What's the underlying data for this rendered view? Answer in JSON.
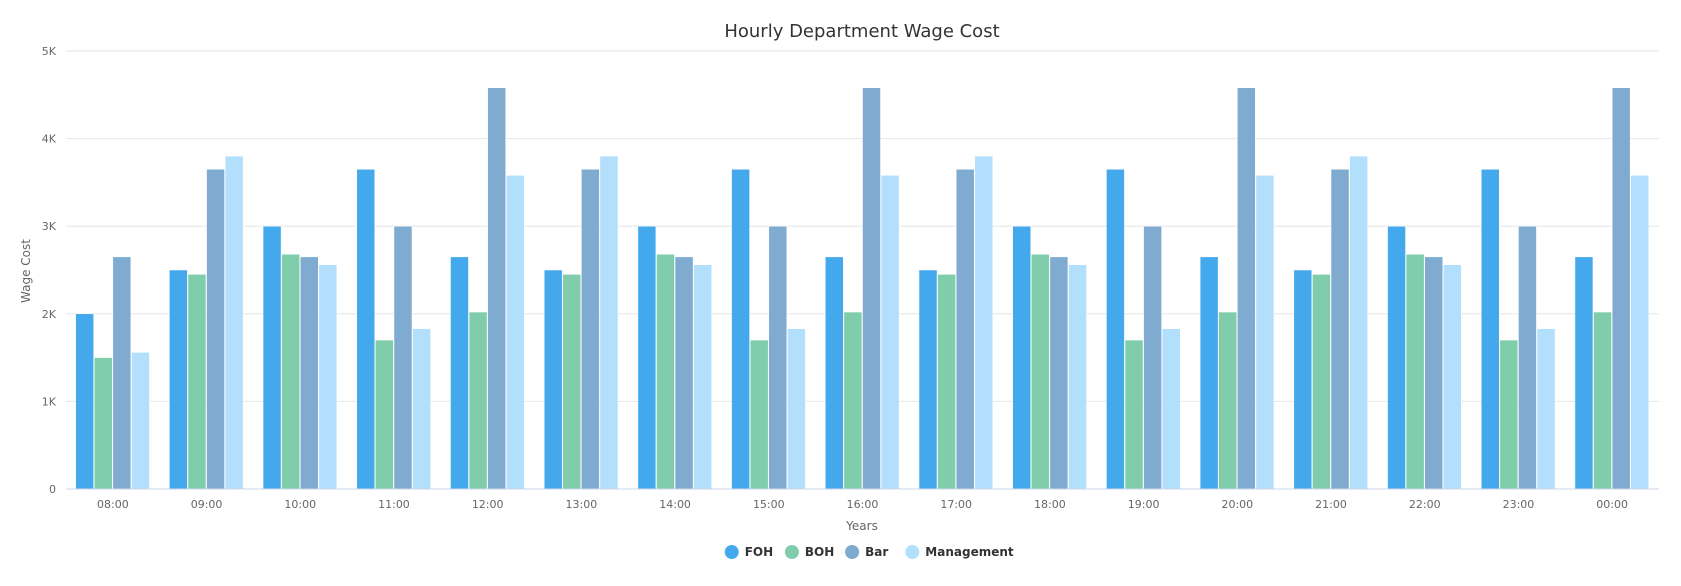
{
  "chart_data": {
    "type": "bar",
    "title": "Hourly Department Wage Cost",
    "xlabel": "Years",
    "ylabel": "Wage Cost",
    "ylim": [
      0,
      5000
    ],
    "yticks": [
      0,
      1000,
      2000,
      3000,
      4000,
      5000
    ],
    "ytick_labels": [
      "0",
      "1K",
      "2K",
      "3K",
      "4K",
      "5K"
    ],
    "grid": true,
    "legend_position": "bottom-center",
    "categories": [
      "08:00",
      "09:00",
      "10:00",
      "11:00",
      "12:00",
      "13:00",
      "14:00",
      "15:00",
      "16:00",
      "17:00",
      "18:00",
      "19:00",
      "20:00",
      "21:00",
      "22:00",
      "23:00",
      "00:00"
    ],
    "series": [
      {
        "name": "FOH",
        "color": "#44a9ec",
        "values": [
          2000,
          2500,
          3000,
          3650,
          2650,
          2500,
          3000,
          3650,
          2650,
          2500,
          3000,
          3650,
          2650,
          2500,
          3000,
          3650,
          2650
        ]
      },
      {
        "name": "BOH",
        "color": "#7fcdab",
        "values": [
          1500,
          2450,
          2680,
          1700,
          2020,
          2450,
          2680,
          1700,
          2020,
          2450,
          2680,
          1700,
          2020,
          2450,
          2680,
          1700,
          2020
        ]
      },
      {
        "name": "Bar",
        "color": "#7eabcf",
        "values": [
          2650,
          3650,
          2650,
          3000,
          4580,
          3650,
          2650,
          3000,
          4580,
          3650,
          2650,
          3000,
          4580,
          3650,
          2650,
          3000,
          4580
        ]
      },
      {
        "name": "Management",
        "color": "#b2dffb",
        "values": [
          1560,
          3800,
          2560,
          1830,
          3580,
          3800,
          2560,
          1830,
          3580,
          3800,
          2560,
          1830,
          3580,
          3800,
          2560,
          1830,
          3580
        ]
      }
    ]
  }
}
